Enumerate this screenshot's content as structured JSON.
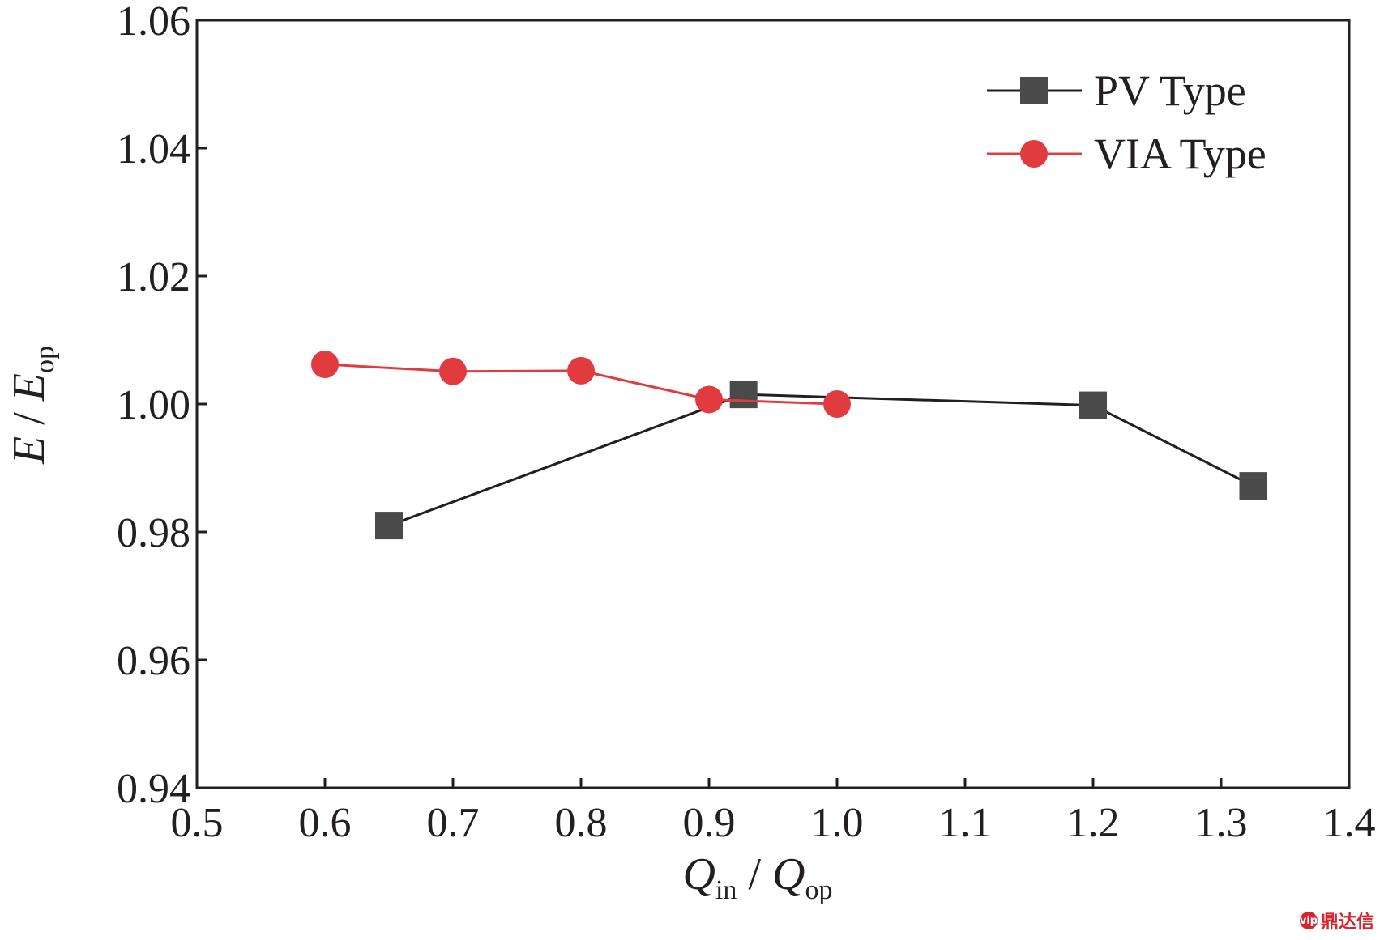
{
  "chart_data": {
    "type": "line",
    "title": "",
    "xlabel": {
      "main": "Q",
      "sub": "in",
      "sep": " / ",
      "main2": "Q",
      "sub2": "op"
    },
    "ylabel": {
      "main": "E",
      "sep": " / ",
      "main2": "E",
      "sub2": "op"
    },
    "xlim": [
      0.5,
      1.4
    ],
    "ylim": [
      0.94,
      1.06
    ],
    "xticks": [
      0.5,
      0.6,
      0.7,
      0.8,
      0.9,
      1.0,
      1.1,
      1.2,
      1.3,
      1.4
    ],
    "xtick_labels": [
      "0.5",
      "0.6",
      "0.7",
      "0.8",
      "0.9",
      "1.0",
      "1.1",
      "1.2",
      "1.3",
      "1.4"
    ],
    "yticks": [
      0.94,
      0.96,
      0.98,
      1.0,
      1.02,
      1.04,
      1.06
    ],
    "ytick_labels": [
      "0.94",
      "0.96",
      "0.98",
      "1.00",
      "1.02",
      "1.04",
      "1.06"
    ],
    "grid": false,
    "legend_position": "top-right",
    "series": [
      {
        "name": "PV Type",
        "color": "#231f20",
        "marker_color": "#4a4a4a",
        "marker": "square",
        "x": [
          0.65,
          0.927,
          1.2,
          1.325
        ],
        "y": [
          0.981,
          1.0015,
          0.9998,
          0.9872
        ]
      },
      {
        "name": "VIA Type",
        "color": "#e03c3f",
        "marker_color": "#e03c3f",
        "marker": "circle",
        "x": [
          0.6,
          0.7,
          0.8,
          0.9,
          1.0
        ],
        "y": [
          1.0062,
          1.0051,
          1.0052,
          1.0007,
          1.0
        ]
      }
    ]
  },
  "watermark": {
    "text": "鼎达信",
    "logo": "vip"
  }
}
